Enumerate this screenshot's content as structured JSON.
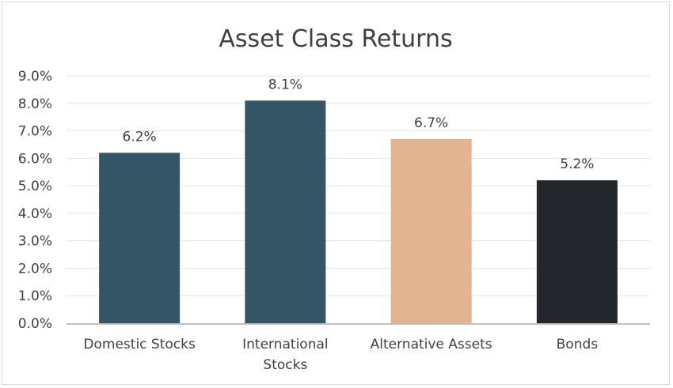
{
  "chart_data": {
    "type": "bar",
    "title": "Asset Class Returns",
    "categories": [
      "Domestic Stocks",
      "International Stocks",
      "Alternative Assets",
      "Bonds"
    ],
    "category_lines": [
      [
        "Domestic Stocks"
      ],
      [
        "International",
        "Stocks"
      ],
      [
        "Alternative Assets"
      ],
      [
        "Bonds"
      ]
    ],
    "values": [
      6.2,
      8.1,
      6.7,
      5.2
    ],
    "data_labels": [
      "6.2%",
      "8.1%",
      "6.7%",
      "5.2%"
    ],
    "bar_colors": [
      "#335565",
      "#335565",
      "#E2B48F",
      "#23272B"
    ],
    "ylim": [
      0,
      9
    ],
    "y_ticks": [
      "0.0%",
      "1.0%",
      "2.0%",
      "3.0%",
      "4.0%",
      "5.0%",
      "6.0%",
      "7.0%",
      "8.0%",
      "9.0%"
    ],
    "xlabel": "",
    "ylabel": "",
    "grid": true,
    "legend": "none",
    "colors": {
      "grid": "#e5e5e5",
      "axis": "#bfbfbf"
    }
  }
}
